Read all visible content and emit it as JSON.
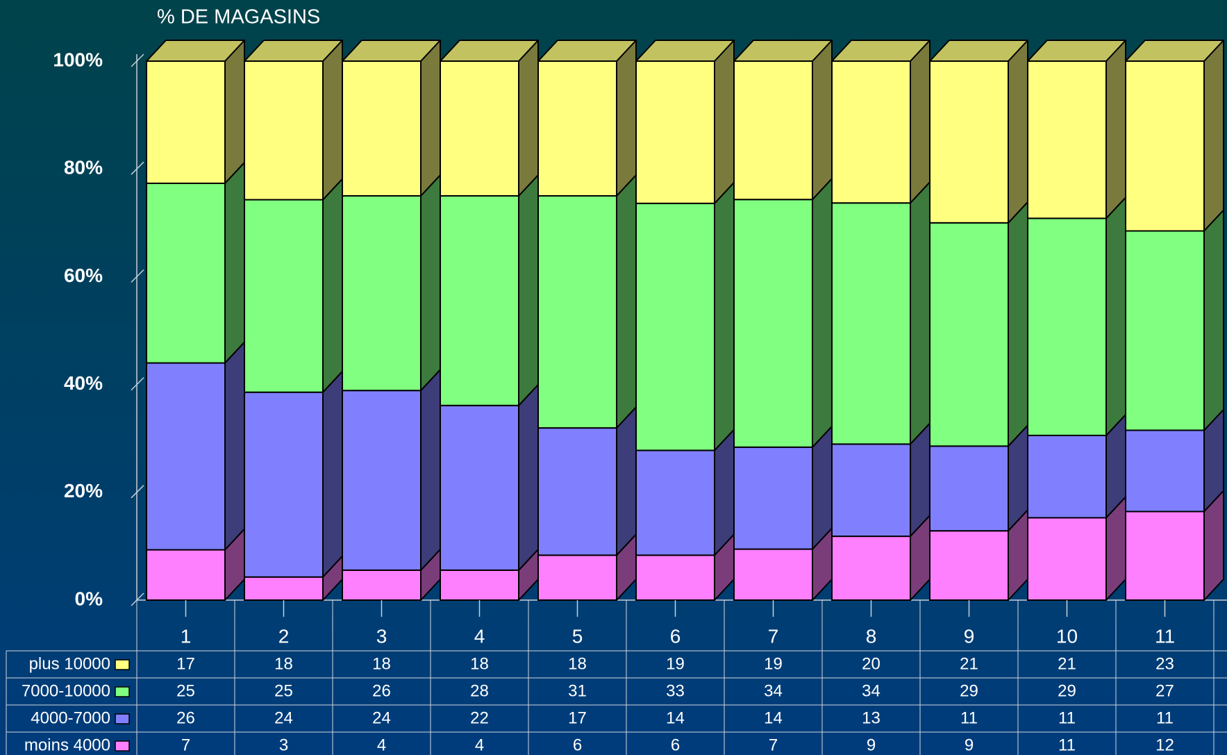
{
  "chart_data": {
    "type": "stacked_bar_3d_percent",
    "title": "% DE MAGASINS",
    "categories": [
      "1",
      "2",
      "3",
      "4",
      "5",
      "6",
      "7",
      "8",
      "9",
      "10",
      "11"
    ],
    "series": [
      {
        "name": "plus 10000",
        "color": "#ffff80",
        "values": [
          17,
          18,
          18,
          18,
          18,
          19,
          19,
          20,
          21,
          21,
          23
        ]
      },
      {
        "name": "7000-10000",
        "color": "#80ff80",
        "values": [
          25,
          25,
          26,
          28,
          31,
          33,
          34,
          34,
          29,
          29,
          27
        ]
      },
      {
        "name": "4000-7000",
        "color": "#8080ff",
        "values": [
          26,
          24,
          24,
          22,
          17,
          14,
          14,
          13,
          11,
          11,
          11
        ]
      },
      {
        "name": "moins 4000",
        "color": "#ff80ff",
        "values": [
          7,
          3,
          4,
          4,
          6,
          6,
          7,
          9,
          9,
          11,
          12
        ]
      }
    ],
    "ylim": [
      0,
      100
    ],
    "yticks": [
      {
        "value": 0,
        "label": "0%"
      },
      {
        "value": 20,
        "label": "20%"
      },
      {
        "value": 40,
        "label": "40%"
      },
      {
        "value": 60,
        "label": "60%"
      },
      {
        "value": 80,
        "label": "80%"
      },
      {
        "value": 100,
        "label": "100%"
      }
    ]
  }
}
